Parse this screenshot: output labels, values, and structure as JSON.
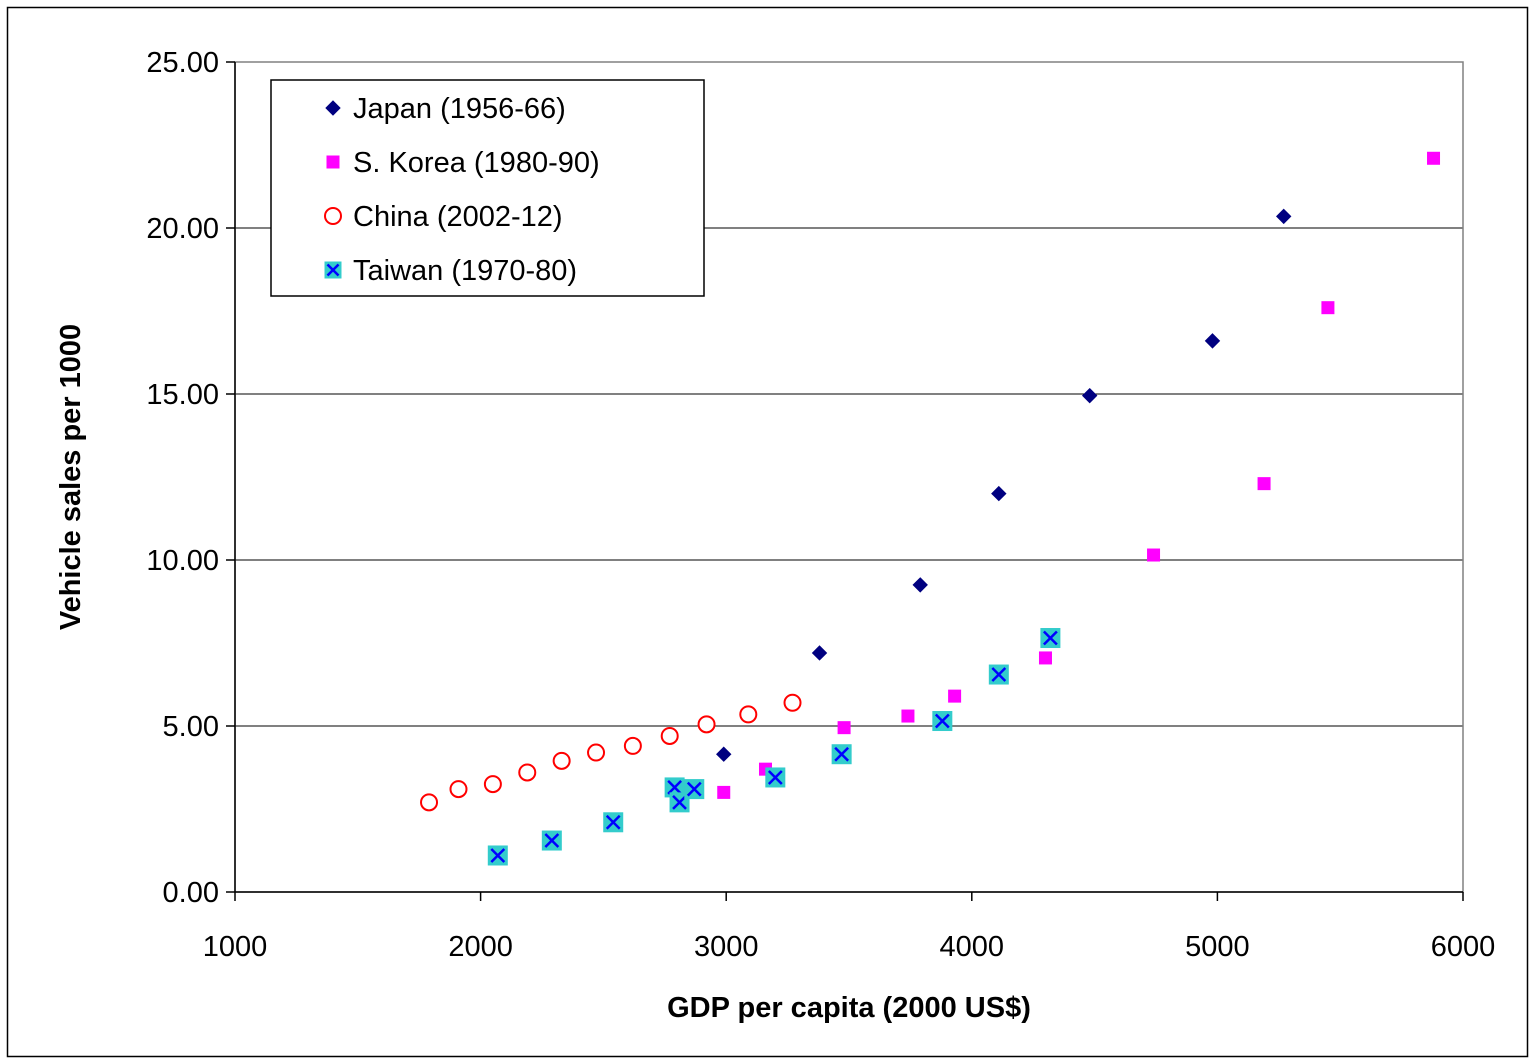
{
  "chart_data": {
    "type": "scatter",
    "title": "",
    "xlabel": "GDP per capita (2000 US$)",
    "ylabel": "Vehicle sales per 1000",
    "xlim": [
      1000,
      6000
    ],
    "ylim": [
      0,
      25
    ],
    "x_ticks": [
      1000,
      2000,
      3000,
      4000,
      5000,
      6000
    ],
    "y_ticks": [
      0,
      5,
      10,
      15,
      20,
      25
    ],
    "x_tick_labels": [
      "1000",
      "2000",
      "3000",
      "4000",
      "5000",
      "6000"
    ],
    "y_tick_labels": [
      "0.00",
      "5.00",
      "10.00",
      "15.00",
      "20.00",
      "25.00"
    ],
    "grid": "horizontal",
    "legend_position": "top-left",
    "series": [
      {
        "name": "Japan (1956-66)",
        "marker": "diamond",
        "color": "#000080",
        "x": [
          2990,
          3380,
          3790,
          4110,
          4480,
          4980,
          5270
        ],
        "y": [
          4.15,
          7.2,
          9.25,
          12.0,
          14.95,
          16.6,
          20.35
        ]
      },
      {
        "name": "S. Korea (1980-90)",
        "marker": "square",
        "color": "#ff00ff",
        "x": [
          2820,
          2990,
          3160,
          3480,
          3740,
          3930,
          4300,
          4740,
          5190,
          5450,
          5880
        ],
        "y": [
          2.9,
          3.0,
          3.7,
          4.95,
          5.3,
          5.9,
          7.05,
          10.15,
          12.3,
          17.6,
          22.1
        ]
      },
      {
        "name": "China (2002-12)",
        "marker": "circle-open",
        "color": "#ff0000",
        "x": [
          1790,
          1910,
          2050,
          2190,
          2330,
          2470,
          2620,
          2770,
          2920,
          3090,
          3270
        ],
        "y": [
          2.7,
          3.1,
          3.25,
          3.6,
          3.95,
          4.2,
          4.4,
          4.7,
          5.05,
          5.35,
          5.7
        ]
      },
      {
        "name": "Taiwan (1970-80)",
        "marker": "x-square",
        "color": "#33cccc",
        "x_color": "#0000ff",
        "x": [
          2070,
          2290,
          2540,
          2790,
          2810,
          2870,
          3200,
          3470,
          3880,
          4110,
          4320
        ],
        "y": [
          1.1,
          1.55,
          2.1,
          3.15,
          2.7,
          3.1,
          3.45,
          4.15,
          5.15,
          6.55,
          7.65
        ]
      }
    ]
  }
}
